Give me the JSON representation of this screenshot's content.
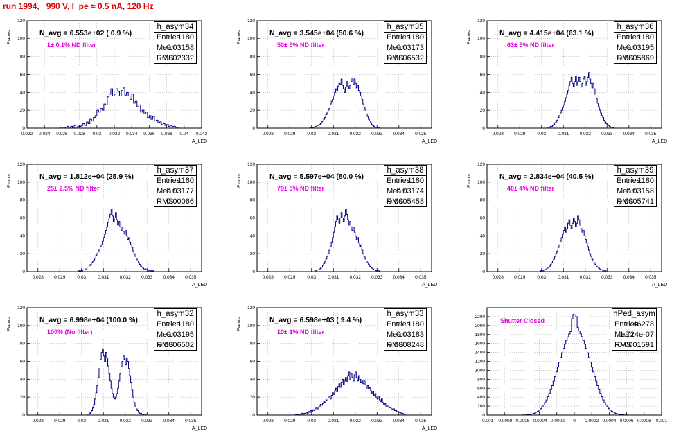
{
  "title": "run 1994,   990 V, I_pe ≈ 0.5 nA, 120 Hz",
  "stat_labels": {
    "entries": "Entries",
    "mean": "Mean",
    "rms": "RMS"
  },
  "colors": {
    "title": "#e00000",
    "histogram": "#000080",
    "filter_text": "#e000e0",
    "grid": "#b0b0b0"
  },
  "chart_data": [
    {
      "type": "bar",
      "name": "h_asym34",
      "navg": "N_avg = 6.553e+02 ( 0.9 %)",
      "filter": "1± 0.1% ND filter",
      "stats": {
        "entries": "1180",
        "mean": "0.03158",
        "rms": "0.002332"
      },
      "ylabel": "Events",
      "xlabel": "A_LED",
      "xlim": [
        0.022,
        0.042
      ],
      "ylim": [
        0,
        120
      ],
      "xticks": [
        0.022,
        0.024,
        0.026,
        0.028,
        0.03,
        0.032,
        0.034,
        0.036,
        0.038,
        0.04,
        0.042
      ],
      "xtick_labels": [
        "0.022",
        "0.024",
        "0.026",
        "0.028",
        "0.03",
        "0.032",
        "0.034",
        "0.036",
        "0.038",
        "0.04",
        "0.042"
      ],
      "yticks": [
        0,
        20,
        40,
        60,
        80,
        100,
        120
      ],
      "hist_mean": 0.03158,
      "hist_sigma": 0.002332,
      "hist_peak": 40,
      "bin_edges": [
        0.0258,
        0.0394
      ],
      "bins": 68,
      "values": [
        1,
        0,
        1,
        0,
        2,
        1,
        2,
        0,
        3,
        1,
        2,
        2,
        3,
        5,
        3,
        7,
        5,
        10,
        8,
        12,
        14,
        20,
        18,
        22,
        20,
        27,
        26,
        35,
        38,
        44,
        36,
        38,
        44,
        41,
        36,
        42,
        45,
        37,
        40,
        36,
        32,
        38,
        28,
        30,
        24,
        26,
        18,
        20,
        16,
        18,
        12,
        14,
        10,
        13,
        8,
        9,
        6,
        7,
        4,
        5,
        3,
        4,
        2,
        3,
        2,
        2,
        1,
        1
      ]
    },
    {
      "type": "bar",
      "name": "h_asym35",
      "navg": "N_avg = 3.545e+04 (50.6 %)",
      "filter": "50± 5% ND filter",
      "stats": {
        "entries": "1180",
        "mean": "0.03173",
        "rms": "0.0006532"
      },
      "ylabel": "Events",
      "xlabel": "A_LED",
      "xlim": [
        0.0275,
        0.0355
      ],
      "ylim": [
        0,
        120
      ],
      "xticks": [
        0.028,
        0.029,
        0.03,
        0.031,
        0.032,
        0.033,
        0.034,
        0.035
      ],
      "xtick_labels": [
        "0.028",
        "0.029",
        "0.03",
        "0.031",
        "0.032",
        "0.033",
        "0.034",
        "0.035"
      ],
      "yticks": [
        0,
        20,
        40,
        60,
        80,
        100,
        120
      ],
      "hist_mean": 0.03173,
      "hist_sigma": 0.0006532,
      "hist_peak": 50,
      "bin_edges": [
        0.0299,
        0.0333
      ],
      "bins": 68,
      "values": [
        0,
        1,
        0,
        1,
        1,
        2,
        2,
        3,
        3,
        4,
        5,
        7,
        8,
        10,
        12,
        15,
        17,
        20,
        22,
        27,
        30,
        32,
        36,
        40,
        44,
        42,
        47,
        50,
        49,
        55,
        48,
        44,
        40,
        46,
        52,
        47,
        44,
        48,
        52,
        56,
        49,
        55,
        50,
        45,
        48,
        42,
        40,
        36,
        32,
        27,
        23,
        20,
        16,
        13,
        10,
        8,
        6,
        4,
        3,
        2,
        1,
        1,
        0,
        1,
        0,
        0,
        0,
        0
      ]
    },
    {
      "type": "bar",
      "name": "h_asym36",
      "navg": "N_avg = 4.415e+04 (63.1 %)",
      "filter": "63± 5% ND filter",
      "stats": {
        "entries": "1180",
        "mean": "0.03195",
        "rms": "0.0005869"
      },
      "ylabel": "Events",
      "xlabel": "A_LED",
      "xlim": [
        0.0275,
        0.0355
      ],
      "ylim": [
        0,
        120
      ],
      "xticks": [
        0.028,
        0.029,
        0.03,
        0.031,
        0.032,
        0.033,
        0.034,
        0.035
      ],
      "xtick_labels": [
        "0.028",
        "0.029",
        "0.03",
        "0.031",
        "0.032",
        "0.033",
        "0.034",
        "0.035"
      ],
      "yticks": [
        0,
        20,
        40,
        60,
        80,
        100,
        120
      ],
      "hist_mean": 0.03195,
      "hist_sigma": 0.0005869,
      "hist_peak": 56,
      "bin_edges": [
        0.0302,
        0.0335
      ],
      "bins": 66,
      "values": [
        0,
        1,
        1,
        1,
        2,
        2,
        3,
        4,
        6,
        7,
        9,
        12,
        14,
        17,
        20,
        23,
        26,
        30,
        34,
        38,
        42,
        48,
        52,
        57,
        50,
        46,
        52,
        58,
        48,
        52,
        57,
        52,
        46,
        50,
        55,
        58,
        48,
        52,
        57,
        62,
        55,
        50,
        45,
        50,
        44,
        38,
        33,
        28,
        24,
        20,
        17,
        14,
        12,
        9,
        7,
        5,
        4,
        3,
        2,
        1,
        1,
        1,
        0,
        0,
        0,
        0
      ]
    },
    {
      "type": "bar",
      "name": "h_asym37",
      "navg": "N_avg = 1.812e+04 (25.9 %)",
      "filter": "25± 2.5% ND filter",
      "stats": {
        "entries": "1180",
        "mean": "0.03177",
        "rms": "0.00066"
      },
      "ylabel": "Events",
      "xlabel": "A_LED",
      "xlim": [
        0.0275,
        0.0355
      ],
      "ylim": [
        0,
        120
      ],
      "xticks": [
        0.028,
        0.029,
        0.03,
        0.031,
        0.032,
        0.033,
        0.034,
        0.035
      ],
      "xtick_labels": [
        "0.028",
        "0.029",
        "0.03",
        "0.031",
        "0.032",
        "0.033",
        "0.034",
        "0.035"
      ],
      "yticks": [
        0,
        20,
        40,
        60,
        80,
        100,
        120
      ],
      "hist_mean": 0.03177,
      "hist_sigma": 0.00066,
      "hist_peak": 60,
      "bin_edges": [
        0.0298,
        0.0335
      ],
      "bins": 74,
      "values": [
        0,
        1,
        0,
        1,
        1,
        2,
        2,
        3,
        3,
        5,
        5,
        7,
        8,
        10,
        11,
        13,
        15,
        18,
        20,
        22,
        25,
        28,
        30,
        34,
        38,
        42,
        46,
        50,
        55,
        60,
        64,
        70,
        62,
        56,
        60,
        66,
        58,
        52,
        56,
        50,
        46,
        50,
        45,
        42,
        46,
        40,
        36,
        38,
        33,
        30,
        27,
        23,
        20,
        17,
        14,
        12,
        10,
        8,
        6,
        5,
        4,
        3,
        3,
        2,
        2,
        1,
        1,
        1,
        0,
        1,
        0,
        0,
        0,
        0
      ]
    },
    {
      "type": "bar",
      "name": "h_asym38",
      "navg": "N_avg = 5.597e+04 (80.0 %)",
      "filter": "79± 5% ND filter",
      "stats": {
        "entries": "1180",
        "mean": "0.03174",
        "rms": "0.0005458"
      },
      "ylabel": "Events",
      "xlabel": "A_LED",
      "xlim": [
        0.0275,
        0.0355
      ],
      "ylim": [
        0,
        120
      ],
      "xticks": [
        0.028,
        0.029,
        0.03,
        0.031,
        0.032,
        0.033,
        0.034,
        0.035
      ],
      "xtick_labels": [
        "0.028",
        "0.029",
        "0.03",
        "0.031",
        "0.032",
        "0.033",
        "0.034",
        "0.035"
      ],
      "yticks": [
        0,
        20,
        40,
        60,
        80,
        100,
        120
      ],
      "hist_mean": 0.03174,
      "hist_sigma": 0.0005458,
      "hist_peak": 62,
      "bin_edges": [
        0.0301,
        0.0334
      ],
      "bins": 66,
      "values": [
        0,
        1,
        1,
        2,
        2,
        3,
        4,
        5,
        7,
        9,
        11,
        14,
        17,
        20,
        24,
        28,
        33,
        38,
        44,
        50,
        56,
        62,
        58,
        54,
        60,
        66,
        60,
        56,
        62,
        70,
        64,
        58,
        52,
        56,
        50,
        46,
        50,
        44,
        40,
        36,
        38,
        32,
        28,
        30,
        24,
        20,
        17,
        14,
        12,
        10,
        8,
        6,
        5,
        4,
        3,
        2,
        2,
        1,
        1,
        1,
        0,
        0,
        0,
        0,
        0,
        0
      ]
    },
    {
      "type": "bar",
      "name": "h_asym39",
      "navg": "N_avg = 2.834e+04 (40.5 %)",
      "filter": "40± 4% ND filter",
      "stats": {
        "entries": "1180",
        "mean": "0.03158",
        "rms": "0.0005741"
      },
      "ylabel": "Events",
      "xlabel": "A_LED",
      "xlim": [
        0.0275,
        0.0355
      ],
      "ylim": [
        0,
        120
      ],
      "xticks": [
        0.028,
        0.029,
        0.03,
        0.031,
        0.032,
        0.033,
        0.034,
        0.035
      ],
      "xtick_labels": [
        "0.028",
        "0.029",
        "0.03",
        "0.031",
        "0.032",
        "0.033",
        "0.034",
        "0.035"
      ],
      "yticks": [
        0,
        20,
        40,
        60,
        80,
        100,
        120
      ],
      "hist_mean": 0.03158,
      "hist_sigma": 0.0005741,
      "hist_peak": 58,
      "bin_edges": [
        0.0299,
        0.0333
      ],
      "bins": 68,
      "values": [
        0,
        1,
        1,
        1,
        2,
        2,
        3,
        4,
        5,
        6,
        8,
        10,
        12,
        14,
        17,
        20,
        23,
        27,
        30,
        34,
        38,
        42,
        46,
        50,
        44,
        48,
        54,
        58,
        52,
        48,
        54,
        60,
        56,
        50,
        54,
        62,
        58,
        52,
        48,
        44,
        46,
        40,
        36,
        32,
        28,
        24,
        20,
        17,
        14,
        12,
        10,
        8,
        6,
        5,
        4,
        3,
        2,
        2,
        1,
        1,
        1,
        0,
        0,
        0,
        0,
        0,
        0,
        0
      ]
    },
    {
      "type": "bar",
      "name": "h_asym32",
      "navg": "N_avg = 6.998e+04 (100.0 %)",
      "filter": "100% (No filter)",
      "stats": {
        "entries": "1180",
        "mean": "0.03195",
        "rms": "0.0006502"
      },
      "ylabel": "Events",
      "xlabel": "A_LED",
      "xlim": [
        0.0275,
        0.0355
      ],
      "ylim": [
        0,
        120
      ],
      "xticks": [
        0.028,
        0.029,
        0.03,
        0.031,
        0.032,
        0.033,
        0.034,
        0.035
      ],
      "xtick_labels": [
        "0.028",
        "0.029",
        "0.03",
        "0.031",
        "0.032",
        "0.033",
        "0.034",
        "0.035"
      ],
      "yticks": [
        0,
        20,
        40,
        60,
        80,
        100,
        120
      ],
      "hist_mean": 0.03195,
      "hist_sigma": 0.0006502,
      "hist_peak": 70,
      "bin_edges": [
        0.0302,
        0.0333
      ],
      "bins": 62,
      "values": [
        0,
        1,
        1,
        2,
        3,
        5,
        8,
        12,
        18,
        25,
        33,
        42,
        52,
        62,
        70,
        74,
        66,
        60,
        70,
        64,
        55,
        46,
        38,
        30,
        24,
        20,
        18,
        20,
        24,
        30,
        38,
        46,
        54,
        60,
        66,
        62,
        56,
        64,
        60,
        52,
        44,
        36,
        28,
        20,
        14,
        10,
        7,
        5,
        3,
        2,
        2,
        1,
        1,
        0,
        1,
        0,
        0,
        0,
        0,
        0,
        0,
        0
      ]
    },
    {
      "type": "bar",
      "name": "h_asym33",
      "navg": "N_avg = 6.598e+03 ( 9.4 %)",
      "filter": "10± 1% ND filter",
      "stats": {
        "entries": "1180",
        "mean": "0.03183",
        "rms": "0.0008248"
      },
      "ylabel": "Events",
      "xlabel": "A_LED",
      "xlim": [
        0.0275,
        0.0355
      ],
      "ylim": [
        0,
        120
      ],
      "xticks": [
        0.028,
        0.029,
        0.03,
        0.031,
        0.032,
        0.033,
        0.034,
        0.035
      ],
      "xtick_labels": [
        "0.028",
        "0.029",
        "0.03",
        "0.031",
        "0.032",
        "0.033",
        "0.034",
        "0.035"
      ],
      "yticks": [
        0,
        20,
        40,
        60,
        80,
        100,
        120
      ],
      "hist_mean": 0.03183,
      "hist_sigma": 0.0008248,
      "hist_peak": 46,
      "bin_edges": [
        0.0292,
        0.0343
      ],
      "bins": 102,
      "values": [
        0,
        1,
        0,
        1,
        0,
        1,
        1,
        2,
        1,
        2,
        2,
        3,
        2,
        4,
        3,
        5,
        4,
        6,
        5,
        7,
        8,
        7,
        9,
        10,
        12,
        11,
        13,
        15,
        14,
        17,
        16,
        19,
        21,
        18,
        22,
        25,
        23,
        27,
        30,
        26,
        32,
        35,
        31,
        36,
        40,
        34,
        38,
        42,
        37,
        44,
        48,
        40,
        46,
        42,
        38,
        45,
        48,
        42,
        38,
        44,
        40,
        36,
        39,
        35,
        38,
        34,
        30,
        33,
        29,
        31,
        27,
        24,
        26,
        22,
        24,
        20,
        18,
        21,
        17,
        15,
        18,
        14,
        12,
        13,
        10,
        11,
        9,
        8,
        9,
        7,
        6,
        7,
        5,
        5,
        4,
        4,
        3,
        3,
        2,
        2,
        1,
        1
      ]
    },
    {
      "type": "bar",
      "name": "hPed_asym",
      "navg": "",
      "filter": "Shutter Closed",
      "stats": {
        "entries": "46278",
        "mean": "1.724e-07",
        "rms": "0.0001591"
      },
      "ylabel": "",
      "xlabel": "",
      "xlim": [
        -0.001,
        0.001
      ],
      "ylim": [
        0,
        2400
      ],
      "xticks": [
        -0.001,
        -0.0008,
        -0.0006,
        -0.0004,
        -0.0002,
        0,
        0.0002,
        0.0004,
        0.0006,
        0.0008,
        0.001
      ],
      "xtick_labels": [
        "-0.001",
        "-0.0008",
        "-0.0006",
        "-0.0004",
        "-0.0002",
        "0",
        "0.0002",
        "0.0004",
        "0.0006",
        "0.0008",
        "0.001"
      ],
      "yticks": [
        0,
        200,
        400,
        600,
        800,
        1000,
        1200,
        1400,
        1600,
        1800,
        2000,
        2200
      ],
      "hist_mean": 1.72e-07,
      "hist_sigma": 0.0001591,
      "hist_peak": 2250,
      "bin_edges": [
        -0.00065,
        0.00065
      ],
      "bins": 80,
      "values": [
        0,
        1,
        1,
        2,
        3,
        4,
        6,
        9,
        13,
        19,
        26,
        36,
        49,
        65,
        86,
        112,
        143,
        181,
        226,
        279,
        339,
        408,
        484,
        568,
        659,
        756,
        858,
        964,
        1072,
        1181,
        1288,
        1392,
        1491,
        1584,
        1669,
        1745,
        1811,
        1867,
        2150,
        2250,
        2240,
        2200,
        1960,
        1880,
        1815,
        1750,
        1669,
        1584,
        1491,
        1392,
        1288,
        1181,
        1072,
        964,
        858,
        756,
        659,
        568,
        484,
        408,
        339,
        279,
        226,
        181,
        143,
        112,
        86,
        65,
        49,
        36,
        26,
        19,
        13,
        9,
        6,
        4,
        3,
        2,
        1,
        1
      ]
    }
  ]
}
